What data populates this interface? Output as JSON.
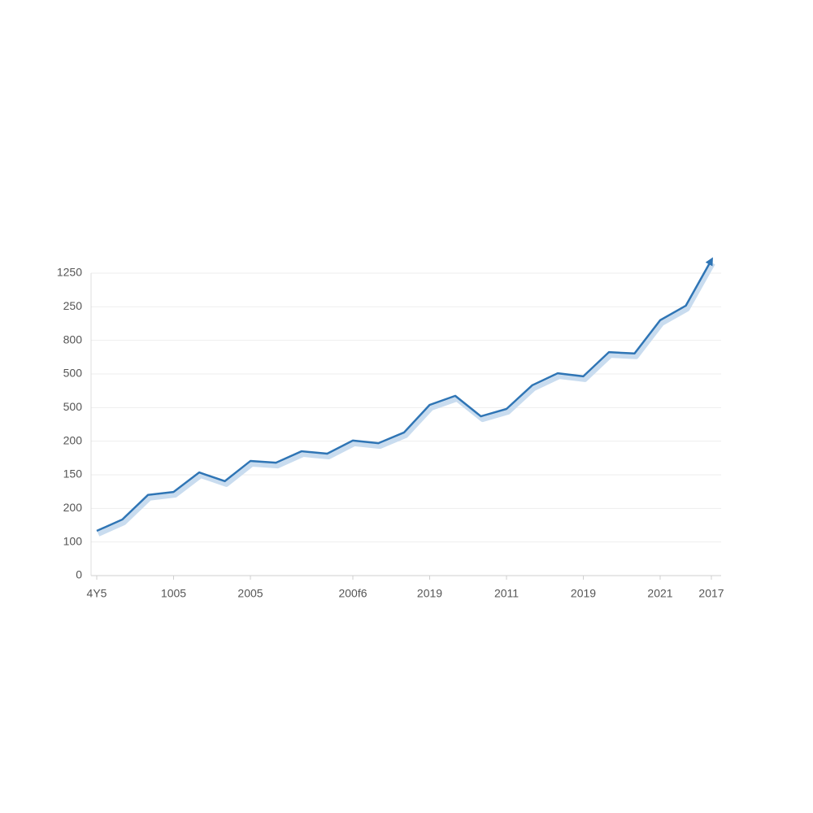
{
  "chart_data": {
    "type": "line",
    "categories": [
      "4Y5",
      null,
      null,
      "1005",
      null,
      null,
      "2005",
      null,
      null,
      null,
      "200f6",
      null,
      null,
      "2019",
      null,
      null,
      "2011",
      null,
      null,
      "2019",
      null,
      null,
      "2021",
      null,
      "2017"
    ],
    "series": [
      {
        "color": "#2f75b5",
        "values": [
          1.33,
          1.67,
          2.4,
          2.49,
          3.07,
          2.81,
          3.41,
          3.36,
          3.7,
          3.63,
          4.02,
          3.94,
          4.26,
          5.08,
          5.35,
          4.74,
          4.96,
          5.66,
          6.02,
          5.93,
          6.65,
          6.61,
          7.6,
          8.03,
          9.39
        ]
      }
    ],
    "ylim": [
      0,
      9
    ],
    "yticks": [
      0,
      {
        "value": 1,
        "label": "100"
      },
      {
        "value": 2,
        "label": "200"
      },
      {
        "value": 3,
        "label": "150"
      },
      {
        "value": 4,
        "label": "200"
      },
      {
        "value": 5,
        "label": "500"
      },
      {
        "value": 6,
        "label": "500"
      },
      {
        "value": 7,
        "label": "800"
      },
      {
        "value": 8,
        "label": "250"
      },
      {
        "value": 9,
        "label": "1250"
      }
    ],
    "grid": true
  }
}
